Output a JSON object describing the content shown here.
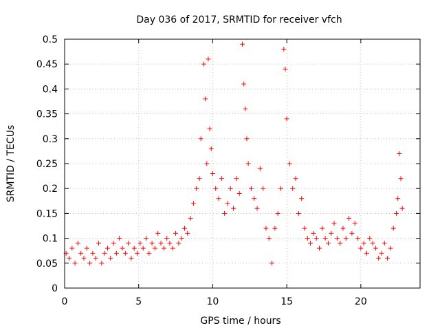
{
  "chart_data": {
    "type": "scatter",
    "title": "Day 036 of 2017, SRMTID for receiver vfch",
    "xlabel": "GPS time / hours",
    "ylabel": "SRMTID / TECUs",
    "xlim": [
      0,
      24
    ],
    "ylim": [
      0,
      0.5
    ],
    "xticks": [
      0,
      5,
      10,
      15,
      20
    ],
    "xtick_labels": [
      "0",
      "5",
      "10",
      "15",
      "20"
    ],
    "yticks": [
      0,
      0.05,
      0.1,
      0.15,
      0.2,
      0.25,
      0.3,
      0.35,
      0.4,
      0.45,
      0.5
    ],
    "ytick_labels": [
      "0",
      "0.05",
      "0.1",
      "0.15",
      "0.2",
      "0.25",
      "0.3",
      "0.35",
      "0.4",
      "0.45",
      "0.5"
    ],
    "grid": true,
    "marker": "+",
    "marker_color": "#ff0000",
    "series": [
      {
        "name": "SRMTID",
        "x": [
          0.1,
          0.3,
          0.5,
          0.7,
          0.9,
          1.1,
          1.3,
          1.5,
          1.7,
          1.9,
          2.1,
          2.3,
          2.5,
          2.7,
          2.9,
          3.1,
          3.3,
          3.5,
          3.7,
          3.9,
          4.1,
          4.3,
          4.5,
          4.7,
          4.9,
          5.1,
          5.3,
          5.5,
          5.7,
          5.9,
          6.1,
          6.3,
          6.5,
          6.7,
          6.9,
          7.1,
          7.3,
          7.5,
          7.7,
          7.9,
          8.1,
          8.3,
          8.5,
          8.7,
          8.9,
          9.1,
          9.2,
          9.4,
          9.5,
          9.6,
          9.7,
          9.8,
          9.9,
          10.0,
          10.2,
          10.4,
          10.6,
          10.8,
          11.0,
          11.2,
          11.4,
          11.6,
          11.8,
          12.0,
          12.1,
          12.2,
          12.3,
          12.4,
          12.6,
          12.8,
          13.0,
          13.2,
          13.4,
          13.6,
          13.8,
          14.0,
          14.2,
          14.4,
          14.6,
          14.8,
          14.9,
          15.0,
          15.2,
          15.4,
          15.6,
          15.8,
          16.0,
          16.2,
          16.4,
          16.6,
          16.8,
          17.0,
          17.2,
          17.4,
          17.6,
          17.8,
          18.0,
          18.2,
          18.4,
          18.6,
          18.8,
          19.0,
          19.2,
          19.4,
          19.6,
          19.8,
          20.0,
          20.2,
          20.4,
          20.6,
          20.8,
          21.0,
          21.2,
          21.4,
          21.6,
          21.8,
          22.0,
          22.2,
          22.4,
          22.5,
          22.6,
          22.7,
          22.8
        ],
        "y": [
          0.07,
          0.06,
          0.08,
          0.05,
          0.09,
          0.07,
          0.06,
          0.08,
          0.05,
          0.07,
          0.06,
          0.09,
          0.05,
          0.07,
          0.08,
          0.06,
          0.09,
          0.07,
          0.1,
          0.08,
          0.07,
          0.09,
          0.06,
          0.08,
          0.07,
          0.09,
          0.08,
          0.1,
          0.07,
          0.09,
          0.08,
          0.11,
          0.09,
          0.08,
          0.1,
          0.09,
          0.08,
          0.11,
          0.09,
          0.1,
          0.12,
          0.11,
          0.14,
          0.17,
          0.2,
          0.22,
          0.3,
          0.45,
          0.38,
          0.25,
          0.46,
          0.32,
          0.28,
          0.23,
          0.2,
          0.18,
          0.22,
          0.15,
          0.17,
          0.2,
          0.16,
          0.22,
          0.19,
          0.49,
          0.41,
          0.36,
          0.3,
          0.25,
          0.2,
          0.18,
          0.16,
          0.24,
          0.2,
          0.12,
          0.1,
          0.05,
          0.12,
          0.15,
          0.2,
          0.48,
          0.44,
          0.34,
          0.25,
          0.2,
          0.22,
          0.15,
          0.18,
          0.12,
          0.1,
          0.09,
          0.11,
          0.1,
          0.08,
          0.12,
          0.1,
          0.09,
          0.11,
          0.13,
          0.1,
          0.09,
          0.12,
          0.1,
          0.14,
          0.11,
          0.13,
          0.1,
          0.08,
          0.09,
          0.07,
          0.1,
          0.09,
          0.08,
          0.06,
          0.07,
          0.09,
          0.06,
          0.08,
          0.12,
          0.15,
          0.18,
          0.27,
          0.22,
          0.16
        ]
      }
    ]
  }
}
